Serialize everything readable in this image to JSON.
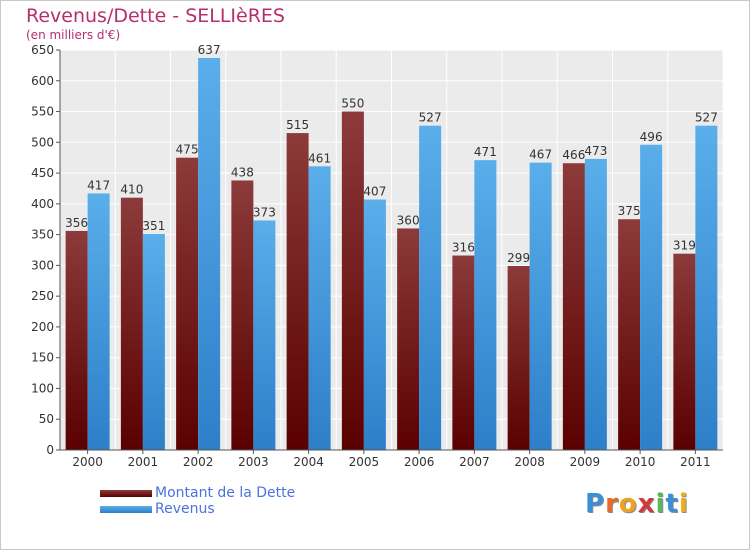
{
  "colors": {
    "title": "#b5306a",
    "debt_dark": "#5a0000",
    "debt_light": "#8c3a3a",
    "revenue_dark": "#2d7fc8",
    "revenue_light": "#5aaeea",
    "grid": "#e0e0e0",
    "plot_bg": "#ebebeb",
    "legend_text": "#4a72e0"
  },
  "chart_data": {
    "type": "bar",
    "title": "Revenus/Dette - SELLIèRES",
    "subtitle": "(en milliers d'€)",
    "categories": [
      "2000",
      "2001",
      "2002",
      "2003",
      "2004",
      "2005",
      "2006",
      "2007",
      "2008",
      "2009",
      "2010",
      "2011"
    ],
    "series": [
      {
        "name": "Montant de la Dette",
        "values": [
          356,
          410,
          475,
          438,
          515,
          550,
          360,
          316,
          299,
          466,
          375,
          319
        ]
      },
      {
        "name": "Revenus",
        "values": [
          417,
          351,
          637,
          373,
          461,
          407,
          527,
          471,
          467,
          473,
          496,
          527
        ]
      }
    ],
    "ylim": [
      0,
      650
    ],
    "yticks": [
      0,
      50,
      100,
      150,
      200,
      250,
      300,
      350,
      400,
      450,
      500,
      550,
      600,
      650
    ],
    "grid": true,
    "legend_position": "bottom-left"
  },
  "logo": {
    "letters": [
      {
        "ch": "P",
        "color": "#3b8fd6"
      },
      {
        "ch": "r",
        "color": "#e8692c"
      },
      {
        "ch": "o",
        "color": "#f0a020"
      },
      {
        "ch": "x",
        "color": "#d03a3a"
      },
      {
        "ch": "i",
        "color": "#5cb85c"
      },
      {
        "ch": "t",
        "color": "#3b8fd6"
      },
      {
        "ch": "i",
        "color": "#e8b020"
      }
    ]
  }
}
